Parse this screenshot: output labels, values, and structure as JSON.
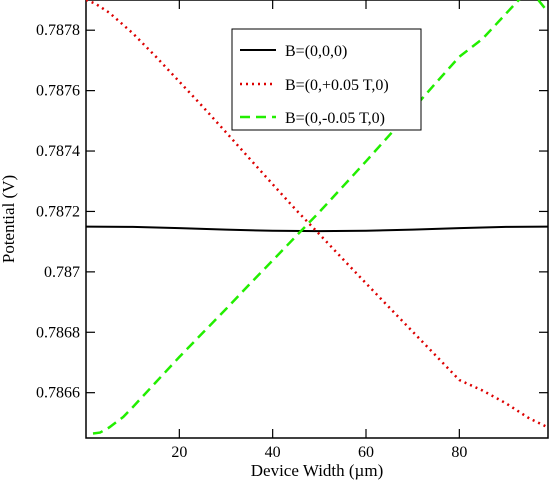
{
  "chart_data": {
    "type": "line",
    "xlabel": "Device Width (µm)",
    "ylabel": "Potential (V)",
    "xlim": [
      0,
      99
    ],
    "ylim": [
      0.78645,
      0.7879
    ],
    "xticks": [
      20,
      40,
      60,
      80
    ],
    "xtick_labels": [
      "20",
      "40",
      "60",
      "80"
    ],
    "yticks": [
      0.7866,
      0.7868,
      0.787,
      0.7872,
      0.7874,
      0.7876,
      0.7878
    ],
    "ytick_labels": [
      "0.7866",
      "0.7868",
      "0.787",
      "0.7872",
      "0.7874",
      "0.7876",
      "0.7878"
    ],
    "legend_position": "top-center",
    "grid": false,
    "series": [
      {
        "name": "B=(0,0,0)",
        "color": "#000000",
        "dash": "solid",
        "x": [
          0,
          10,
          20,
          30,
          40,
          50,
          60,
          70,
          80,
          90,
          99
        ],
        "y": [
          0.78715,
          0.787149,
          0.787145,
          0.78714,
          0.787136,
          0.787135,
          0.787136,
          0.78714,
          0.787145,
          0.787149,
          0.78715
        ]
      },
      {
        "name": "B=(0,+0.05 T,0)",
        "color": "#dd0000",
        "dash": "dotted",
        "x": [
          0,
          2,
          5,
          10,
          15,
          20,
          25,
          30,
          35,
          40,
          45,
          50,
          55,
          60,
          65,
          70,
          75,
          80,
          85,
          90,
          95,
          99
        ],
        "y": [
          0.7879,
          0.787888,
          0.787858,
          0.78779,
          0.787712,
          0.78763,
          0.787547,
          0.787462,
          0.787376,
          0.78729,
          0.787205,
          0.787125,
          0.787043,
          0.786962,
          0.786882,
          0.786802,
          0.786722,
          0.786642,
          0.786607,
          0.786565,
          0.786515,
          0.786485
        ]
      },
      {
        "name": "B=(0,-0.05 T,0)",
        "color": "#22ee00",
        "dash": "dashed",
        "x": [
          1.5,
          3,
          5,
          8,
          10,
          15,
          20,
          25,
          30,
          35,
          40,
          45,
          50,
          55,
          60,
          65,
          70,
          75,
          80,
          85,
          90,
          95,
          99
        ],
        "y": [
          0.786465,
          0.786468,
          0.786485,
          0.78652,
          0.786552,
          0.786635,
          0.786718,
          0.786798,
          0.786877,
          0.786958,
          0.787038,
          0.787118,
          0.787198,
          0.787282,
          0.787366,
          0.787452,
          0.787538,
          0.787626,
          0.787712,
          0.787772,
          0.787855,
          0.787937,
          0.78786
        ]
      }
    ]
  }
}
